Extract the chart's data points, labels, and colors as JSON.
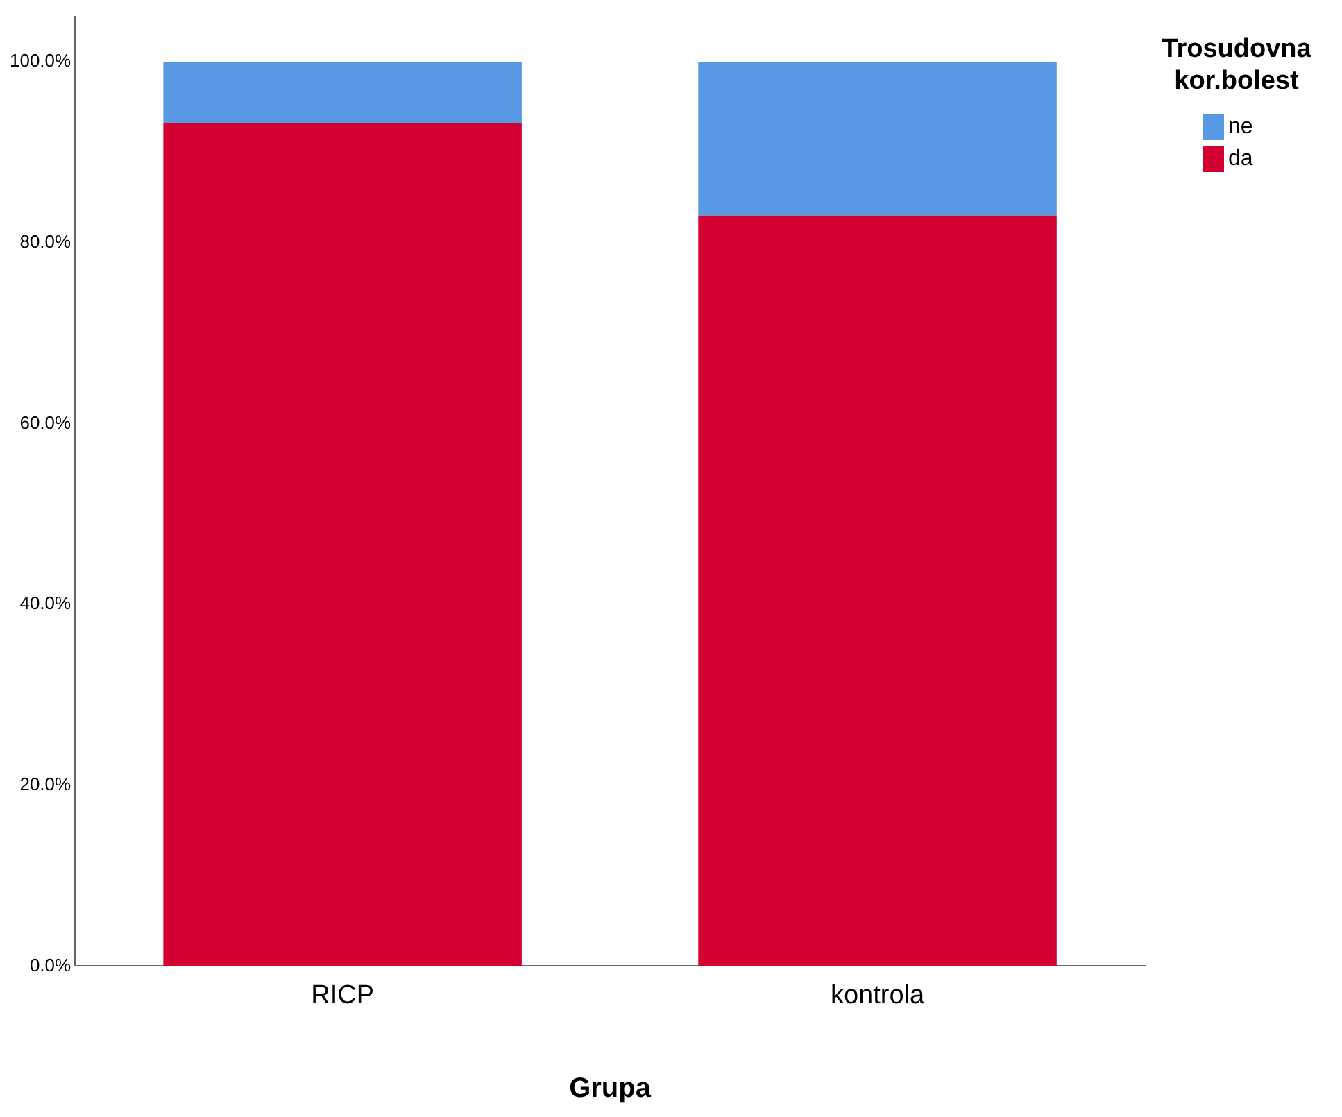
{
  "chart_data": {
    "type": "bar",
    "stacked": true,
    "xlabel": "Grupa",
    "legend_title": "Trosudovna kor.bolest",
    "legend": "top right",
    "grid": false,
    "categories": [
      "RICP",
      "kontrola"
    ],
    "series": [
      {
        "name": "da",
        "color": "#d50032",
        "values": [
          93.2,
          83.0
        ]
      },
      {
        "name": "ne",
        "color": "#5799e5",
        "values": [
          6.8,
          17.0
        ]
      }
    ],
    "ylim": [
      0,
      105
    ],
    "yticks": [
      {
        "value": 0,
        "label": "0.0%"
      },
      {
        "value": 20,
        "label": "20.0%"
      },
      {
        "value": 40,
        "label": "40.0%"
      },
      {
        "value": 60,
        "label": "60.0%"
      },
      {
        "value": 80,
        "label": "80.0%"
      },
      {
        "value": 100,
        "label": "100.0%"
      }
    ]
  }
}
